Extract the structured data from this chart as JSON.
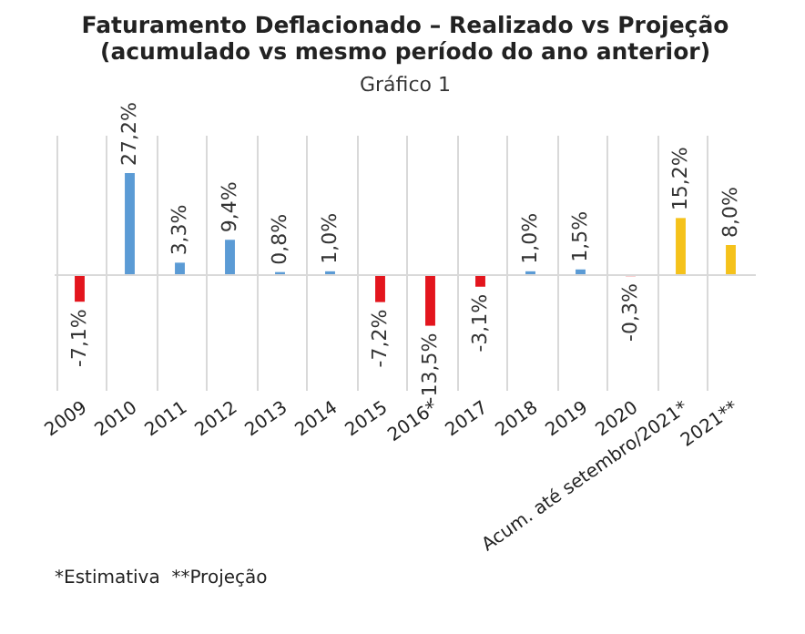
{
  "chart_data": {
    "type": "bar",
    "title": "Faturamento Deflacionado – Realizado vs Projeção\n(acumulado vs mesmo período do ano anterior)",
    "subtitle": "Gráfico 1",
    "categories": [
      "2009",
      "2010",
      "2011",
      "2012",
      "2013",
      "2014",
      "2015",
      "2016*",
      "2017",
      "2018",
      "2019",
      "2020",
      "Acum. até setembro/2021*",
      "2021**"
    ],
    "values": [
      -7.1,
      27.2,
      3.3,
      9.4,
      0.8,
      1.0,
      -7.2,
      -13.5,
      -3.1,
      1.0,
      1.5,
      -0.3,
      15.2,
      8.0
    ],
    "colors": [
      "#e3151d",
      "#5b9bd5",
      "#5b9bd5",
      "#5b9bd5",
      "#5b9bd5",
      "#5b9bd5",
      "#e3151d",
      "#e3151d",
      "#e3151d",
      "#5b9bd5",
      "#5b9bd5",
      "#e3151d",
      "#f5c21b",
      "#f5c21b"
    ],
    "value_labels": [
      "-7,1%",
      "27,2%",
      "3,3%",
      "9,4%",
      "0,8%",
      "1,0%",
      "-7,2%",
      "-13,5%",
      "-3,1%",
      "1,0%",
      "1,5%",
      "-0,3%",
      "15,2%",
      "8,0%"
    ],
    "grid": "x",
    "annotations": [
      "*Estimativa  **Projeção"
    ]
  }
}
